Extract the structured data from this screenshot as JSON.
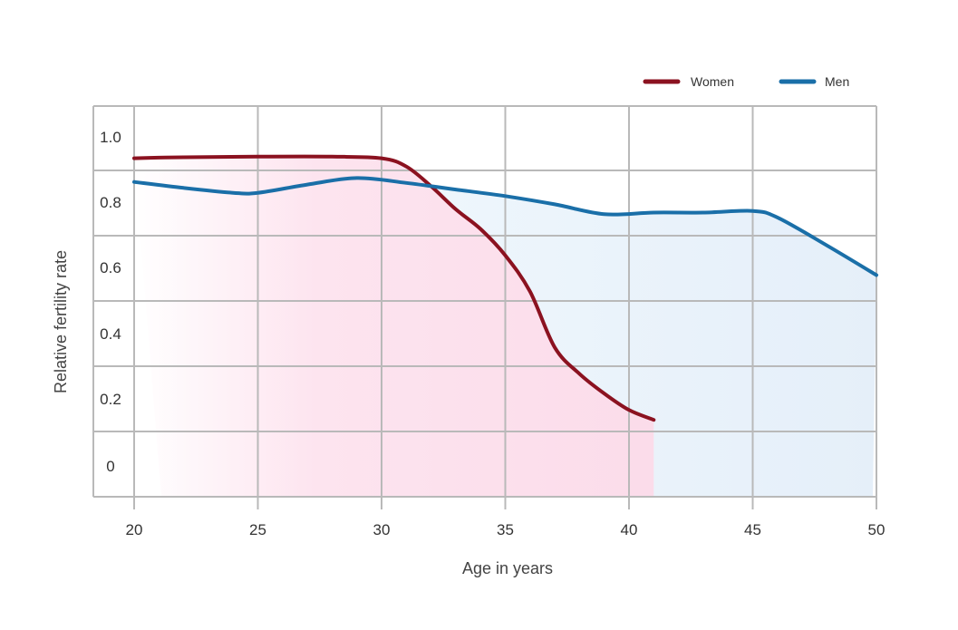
{
  "chart_data": {
    "type": "line",
    "xlabel": "Age in years",
    "ylabel": "Relative fertility rate",
    "xlim": [
      20,
      50
    ],
    "x_ticks": [
      "20",
      "25",
      "30",
      "35",
      "40",
      "45",
      "50"
    ],
    "y_tick_labels": [
      "1.0",
      "0.8",
      "0.6",
      "0.4",
      "0.2",
      "0"
    ],
    "legend_position": "top-right",
    "grid": true,
    "series": [
      {
        "name": "Women",
        "color": "#8b1220",
        "fill": "#fbdcea",
        "x": [
          20,
          21,
          22,
          25,
          28,
          30,
          31,
          32,
          33,
          34,
          35,
          36,
          37,
          38,
          39,
          40,
          41
        ],
        "y": [
          0.935,
          0.937,
          0.938,
          0.94,
          0.94,
          0.935,
          0.91,
          0.85,
          0.78,
          0.72,
          0.64,
          0.53,
          0.36,
          0.28,
          0.22,
          0.17,
          0.14
        ]
      },
      {
        "name": "Men",
        "color": "#1a6fa8",
        "fill": "#e6f0fb",
        "x": [
          20,
          22,
          24,
          25,
          27,
          29,
          31,
          33,
          35,
          37,
          39,
          41,
          43,
          45,
          46,
          48,
          50
        ],
        "y": [
          0.863,
          0.845,
          0.83,
          0.83,
          0.855,
          0.875,
          0.86,
          0.84,
          0.82,
          0.795,
          0.765,
          0.77,
          0.77,
          0.775,
          0.755,
          0.67,
          0.58
        ]
      }
    ]
  }
}
